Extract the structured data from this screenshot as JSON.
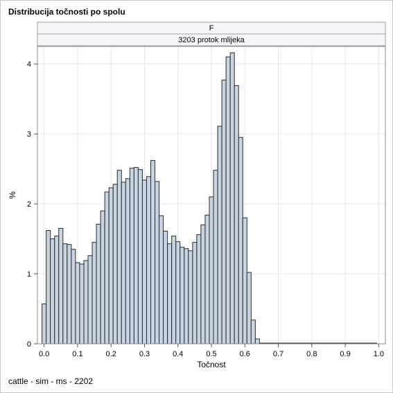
{
  "title": "Distribucija točnosti po spolu",
  "footnote": "cattle - sim - ms - 2202",
  "colors": {
    "bar_fill": "#c9d4e3",
    "bar_stroke": "#2b2b2b",
    "grid": "#e6e6e6",
    "strip_bg": "#f5f5fa",
    "strip_border": "#a0a0a8"
  },
  "chart_data": {
    "type": "bar",
    "panel_labels": [
      "F",
      "3203 protok mlijeka"
    ],
    "xlabel": "Točnost",
    "ylabel": "%",
    "xlim": [
      -0.02,
      1.02
    ],
    "ylim": [
      0,
      4.25
    ],
    "xticks": [
      "0.0",
      "0.1",
      "0.2",
      "0.3",
      "0.4",
      "0.5",
      "0.6",
      "0.7",
      "0.8",
      "0.9",
      "1.0"
    ],
    "yticks": [
      "0",
      "1",
      "2",
      "3",
      "4"
    ],
    "grid": true,
    "bin_width": 0.0125,
    "bin_start": -0.00625,
    "values": [
      0.57,
      1.62,
      1.5,
      1.54,
      1.65,
      1.43,
      1.42,
      1.35,
      1.16,
      1.14,
      1.19,
      1.26,
      1.45,
      1.71,
      1.9,
      2.17,
      2.23,
      2.28,
      2.48,
      2.31,
      2.36,
      2.51,
      2.52,
      2.49,
      2.34,
      2.39,
      2.62,
      2.32,
      1.83,
      1.61,
      1.43,
      1.54,
      1.46,
      1.38,
      1.36,
      1.33,
      1.45,
      1.56,
      1.7,
      1.84,
      2.1,
      2.48,
      3.11,
      3.77,
      4.1,
      4.16,
      3.69,
      2.95,
      1.8,
      1.02,
      0.34,
      0.07,
      0.01,
      0.01,
      0.01,
      0.01,
      0.01,
      0.01,
      0.01,
      0.01,
      0.01,
      0.01,
      0.01,
      0.01,
      0.01,
      0.01,
      0.01,
      0.01,
      0.01,
      0.01,
      0.01,
      0.01,
      0.01,
      0.01,
      0.01,
      0.01,
      0.01,
      0.01,
      0.01,
      0.01
    ]
  }
}
